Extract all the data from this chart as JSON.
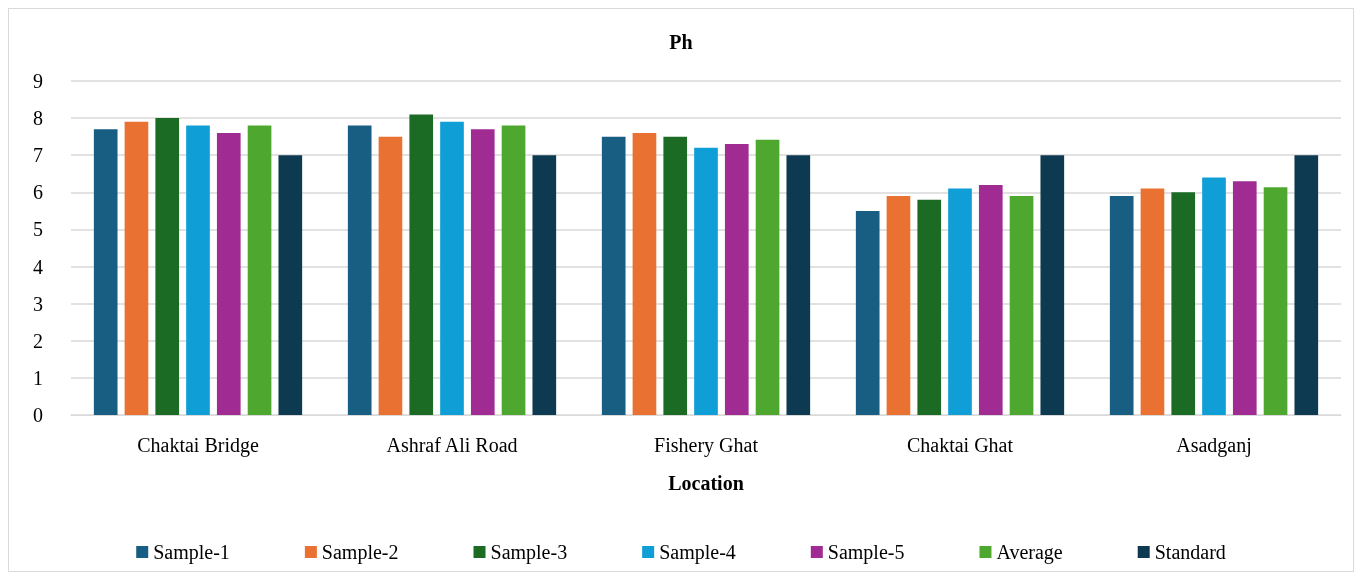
{
  "chart_data": {
    "type": "bar",
    "title": "Ph",
    "xlabel": "Location",
    "categories": [
      "Chaktai Bridge",
      "Ashraf Ali Road",
      "Fishery Ghat",
      "Chaktai Ghat",
      "Asadganj"
    ],
    "series": [
      {
        "name": "Sample-1",
        "color": "#175e82",
        "values": [
          7.7,
          7.8,
          7.5,
          5.5,
          5.9
        ]
      },
      {
        "name": "Sample-2",
        "color": "#e97132",
        "values": [
          7.9,
          7.5,
          7.6,
          5.9,
          6.1
        ]
      },
      {
        "name": "Sample-3",
        "color": "#1b6b24",
        "values": [
          8.0,
          8.1,
          7.5,
          5.8,
          6.0
        ]
      },
      {
        "name": "Sample-4",
        "color": "#0f9ed5",
        "values": [
          7.8,
          7.9,
          7.2,
          6.1,
          6.4
        ]
      },
      {
        "name": "Sample-5",
        "color": "#a02b93",
        "values": [
          7.6,
          7.7,
          7.3,
          6.2,
          6.3
        ]
      },
      {
        "name": "Average",
        "color": "#4ea72e",
        "values": [
          7.8,
          7.8,
          7.42,
          5.9,
          6.14
        ]
      },
      {
        "name": "Standard",
        "color": "#0e3a51",
        "values": [
          7,
          7,
          7,
          7,
          7
        ]
      }
    ],
    "ylim": [
      0,
      9
    ],
    "yticks": [
      0,
      1,
      2,
      3,
      4,
      5,
      6,
      7,
      8,
      9
    ],
    "grid": "y",
    "legend": "bottom"
  }
}
